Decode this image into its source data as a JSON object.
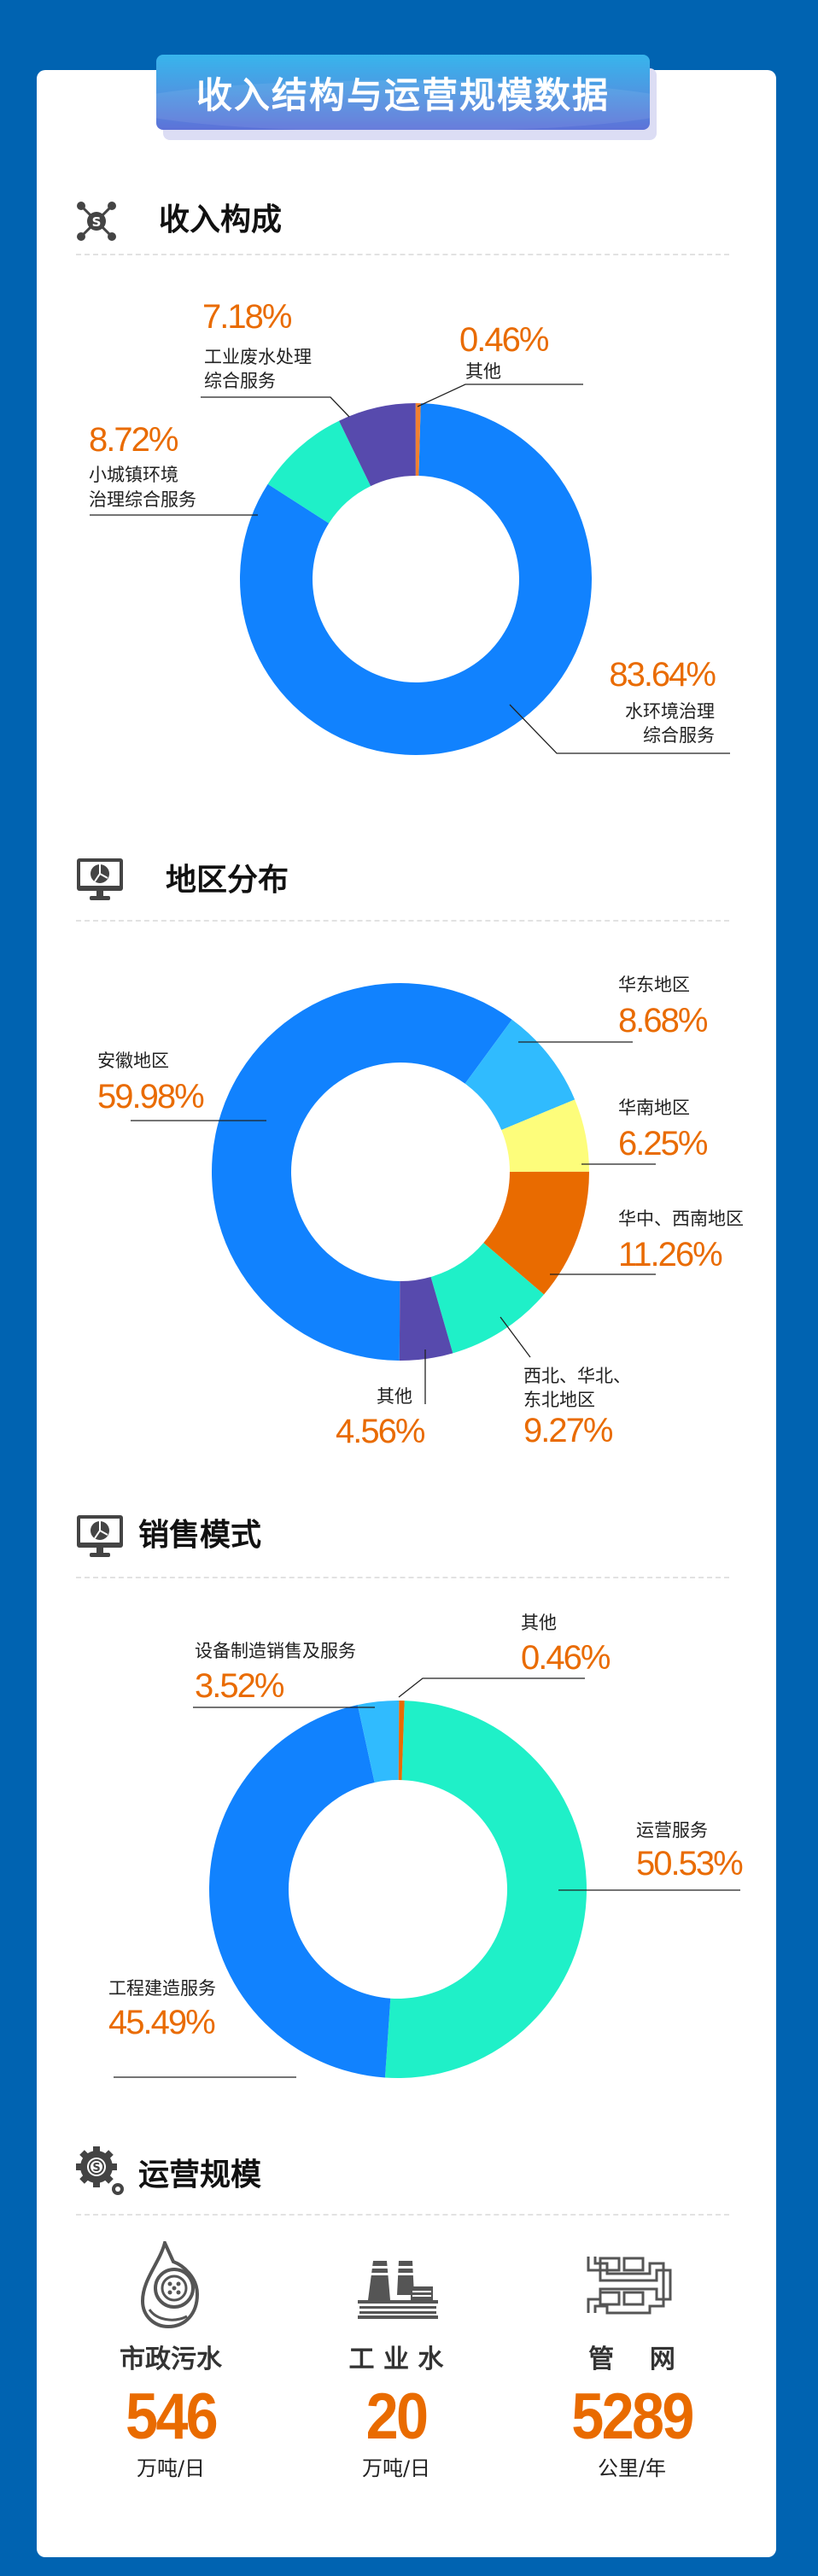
{
  "title": "收入结构与运营规模数据",
  "colors": {
    "background": "#0063B1",
    "accent_orange": "#E96B00",
    "blue": "#1182FE",
    "teal": "#1FF0C8",
    "purple": "#574AAD",
    "orange": "#E96B00",
    "light_blue": "#30BBFE",
    "yellow": "#FDFD7B"
  },
  "chart_data": [
    {
      "type": "pie",
      "title": "收入构成",
      "icon": "money-network-icon",
      "slices": [
        {
          "name": "水环境治理综合服务",
          "lines": [
            "水环境治理",
            "综合服务"
          ],
          "value": 83.64,
          "label": "83.64%",
          "color": "#1182FE"
        },
        {
          "name": "小城镇环境治理综合服务",
          "lines": [
            "小城镇环境",
            "治理综合服务"
          ],
          "value": 8.72,
          "label": "8.72%",
          "color": "#1FF0C8"
        },
        {
          "name": "工业废水处理综合服务",
          "lines": [
            "工业废水处理",
            "综合服务"
          ],
          "value": 7.18,
          "label": "7.18%",
          "color": "#574AAD"
        },
        {
          "name": "其他",
          "lines": [
            "其他"
          ],
          "value": 0.46,
          "label": "0.46%",
          "color": "#F08030"
        }
      ]
    },
    {
      "type": "pie",
      "title": "地区分布",
      "icon": "monitor-pie-icon",
      "slices": [
        {
          "name": "安徽地区",
          "lines": [
            "安徽地区"
          ],
          "value": 59.98,
          "label": "59.98%",
          "color": "#1182FE"
        },
        {
          "name": "华东地区",
          "lines": [
            "华东地区"
          ],
          "value": 8.68,
          "label": "8.68%",
          "color": "#30BBFE"
        },
        {
          "name": "华南地区",
          "lines": [
            "华南地区"
          ],
          "value": 6.25,
          "label": "6.25%",
          "color": "#FDFD7B"
        },
        {
          "name": "华中、西南地区",
          "lines": [
            "华中、西南地区"
          ],
          "value": 11.26,
          "label": "11.26%",
          "color": "#E96B00"
        },
        {
          "name": "西北、华北、东北地区",
          "lines": [
            "西北、华北、",
            "东北地区"
          ],
          "value": 9.27,
          "label": "9.27%",
          "color": "#1FF0C8"
        },
        {
          "name": "其他",
          "lines": [
            "其他"
          ],
          "value": 4.56,
          "label": "4.56%",
          "color": "#574AAD"
        }
      ]
    },
    {
      "type": "pie",
      "title": "销售模式",
      "icon": "monitor-pie-icon",
      "slices": [
        {
          "name": "运营服务",
          "lines": [
            "运营服务"
          ],
          "value": 50.53,
          "label": "50.53%",
          "color": "#1FF0C8"
        },
        {
          "name": "工程建造服务",
          "lines": [
            "工程建造服务"
          ],
          "value": 45.49,
          "label": "45.49%",
          "color": "#1182FE"
        },
        {
          "name": "设备制造销售及服务",
          "lines": [
            "设备制造销售及服务"
          ],
          "value": 3.52,
          "label": "3.52%",
          "color": "#30BBFE"
        },
        {
          "name": "其他",
          "lines": [
            "其他"
          ],
          "value": 0.46,
          "label": "0.46%",
          "color": "#E96B00"
        }
      ]
    }
  ],
  "operations": {
    "title": "运营规模",
    "icon": "gear-money-icon",
    "stats": [
      {
        "name": "市政污水",
        "value": "546",
        "unit": "万吨/日",
        "icon": "water-drop-icon"
      },
      {
        "name": "工 业 水",
        "value": "20",
        "unit": "万吨/日",
        "icon": "factory-icon"
      },
      {
        "name": "管    网",
        "value": "5289",
        "unit": "公里/年",
        "icon": "pipe-network-icon"
      }
    ]
  }
}
